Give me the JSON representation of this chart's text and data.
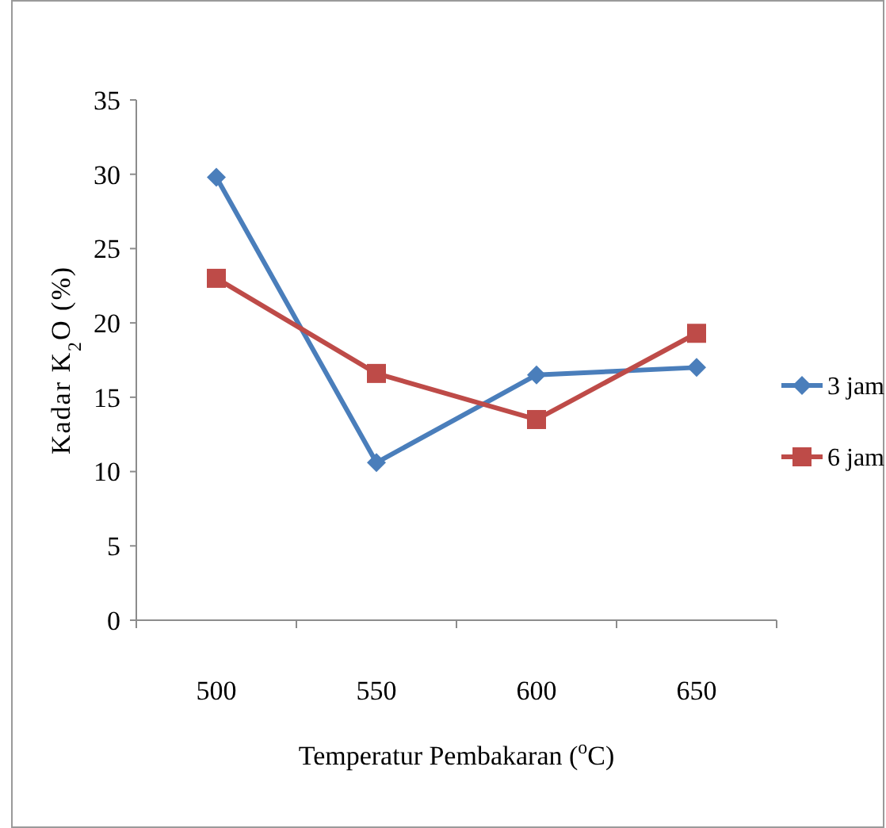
{
  "chart_data": {
    "type": "line",
    "xlabel": "Temperatur Pembakaran ($^{o}$C)",
    "ylabel": "Kadar  K$_{2}$O (%)",
    "categories": [
      "500",
      "550",
      "600",
      "650"
    ],
    "series": [
      {
        "name": "3 jam",
        "color": "#4a7ebb",
        "marker": "diamond",
        "values": [
          29.8,
          10.6,
          16.5,
          17.0
        ]
      },
      {
        "name": "6 jam",
        "color": "#be4b48",
        "marker": "square",
        "values": [
          23.0,
          16.6,
          13.5,
          19.3
        ]
      }
    ],
    "ylim": [
      0,
      35
    ],
    "yticks": [
      0,
      5,
      10,
      15,
      20,
      25,
      30,
      35
    ],
    "grid": false,
    "legend": "right"
  }
}
